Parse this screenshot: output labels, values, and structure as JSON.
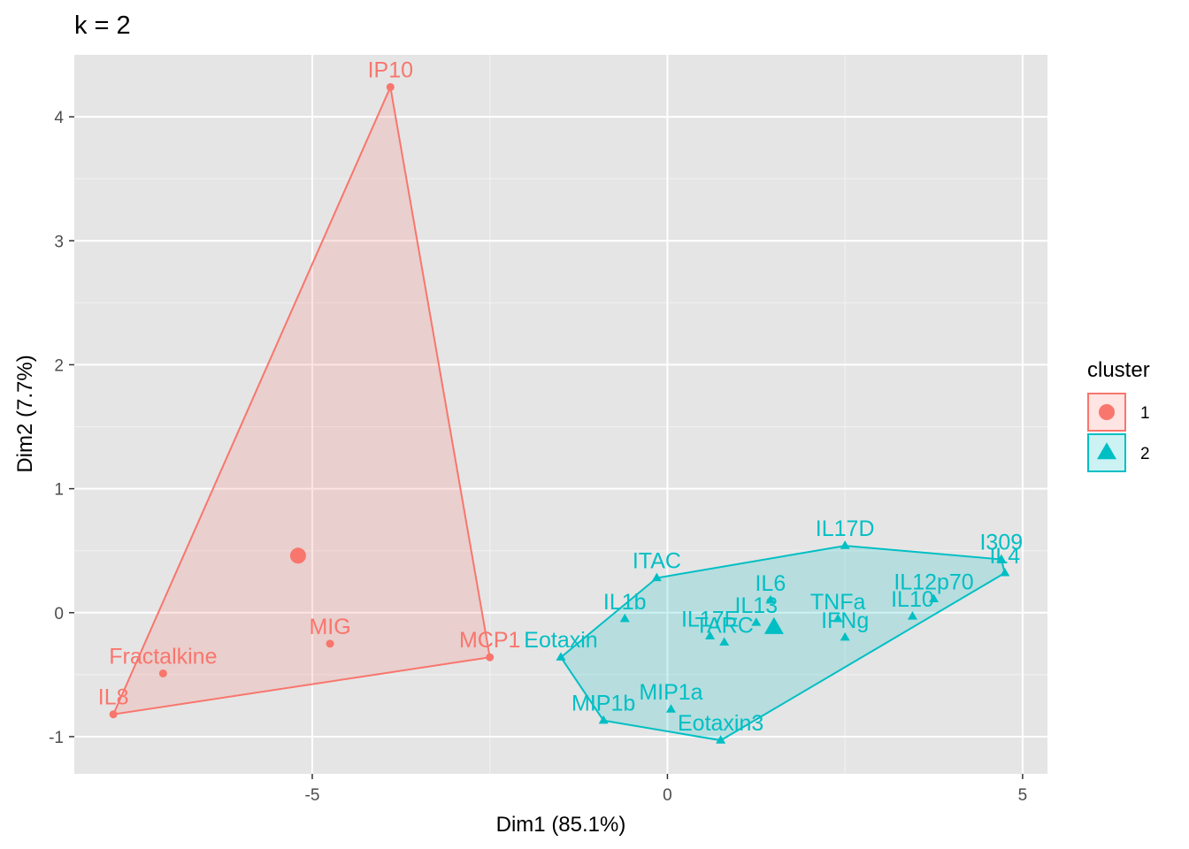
{
  "chart_data": {
    "type": "scatter",
    "title": "k = 2",
    "xlabel": "Dim1 (85.1%)",
    "ylabel": "Dim2 (7.7%)",
    "xlim": [
      -8.35,
      5.35
    ],
    "ylim": [
      -1.3,
      4.5
    ],
    "xticks": [
      -5,
      0,
      5
    ],
    "yticks": [
      -1,
      0,
      1,
      2,
      3,
      4
    ],
    "xtick_labels": [
      "-5",
      "0",
      "5"
    ],
    "ytick_labels": [
      "-1",
      "0",
      "1",
      "2",
      "3",
      "4"
    ],
    "grid": true,
    "legend": {
      "title": "cluster",
      "placement": "right"
    },
    "series": [
      {
        "name": "1",
        "color": "#F8766D",
        "marker": "circle",
        "points": [
          {
            "label": "IP10",
            "x": -3.9,
            "y": 4.24
          },
          {
            "label": "MIG",
            "x": -4.75,
            "y": -0.25
          },
          {
            "label": "Fractalkine",
            "x": -7.1,
            "y": -0.49
          },
          {
            "label": "IL8",
            "x": -7.8,
            "y": -0.82
          },
          {
            "label": "MCP1",
            "x": -2.5,
            "y": -0.36
          }
        ],
        "hull": [
          "IP10",
          "IL8",
          "MCP1"
        ],
        "centroid": {
          "x": -5.2,
          "y": 0.46
        }
      },
      {
        "name": "2",
        "color": "#00BFC4",
        "marker": "triangle",
        "points": [
          {
            "label": "IL17D",
            "x": 2.5,
            "y": 0.54
          },
          {
            "label": "I309",
            "x": 4.7,
            "y": 0.43
          },
          {
            "label": "IL4",
            "x": 4.75,
            "y": 0.32
          },
          {
            "label": "ITAC",
            "x": -0.15,
            "y": 0.28
          },
          {
            "label": "IL12p70",
            "x": 3.75,
            "y": 0.11
          },
          {
            "label": "IL6",
            "x": 1.45,
            "y": 0.1
          },
          {
            "label": "IL1b",
            "x": -0.6,
            "y": -0.05
          },
          {
            "label": "IL10",
            "x": 3.45,
            "y": -0.03
          },
          {
            "label": "TNFa",
            "x": 2.4,
            "y": -0.05
          },
          {
            "label": "IL13",
            "x": 1.25,
            "y": -0.08
          },
          {
            "label": "IFNg",
            "x": 2.5,
            "y": -0.2
          },
          {
            "label": "IL17E",
            "x": 0.6,
            "y": -0.19
          },
          {
            "label": "TARC",
            "x": 0.8,
            "y": -0.24
          },
          {
            "label": "Eotaxin",
            "x": -1.5,
            "y": -0.36
          },
          {
            "label": "MIP1a",
            "x": 0.05,
            "y": -0.78
          },
          {
            "label": "MIP1b",
            "x": -0.9,
            "y": -0.87
          },
          {
            "label": "Eotaxin3",
            "x": 0.75,
            "y": -1.03
          }
        ],
        "hull": [
          "IL17D",
          "I309",
          "IL4",
          "Eotaxin3",
          "MIP1b",
          "Eotaxin",
          "ITAC"
        ],
        "centroid": {
          "x": 1.5,
          "y": -0.12
        }
      }
    ]
  }
}
